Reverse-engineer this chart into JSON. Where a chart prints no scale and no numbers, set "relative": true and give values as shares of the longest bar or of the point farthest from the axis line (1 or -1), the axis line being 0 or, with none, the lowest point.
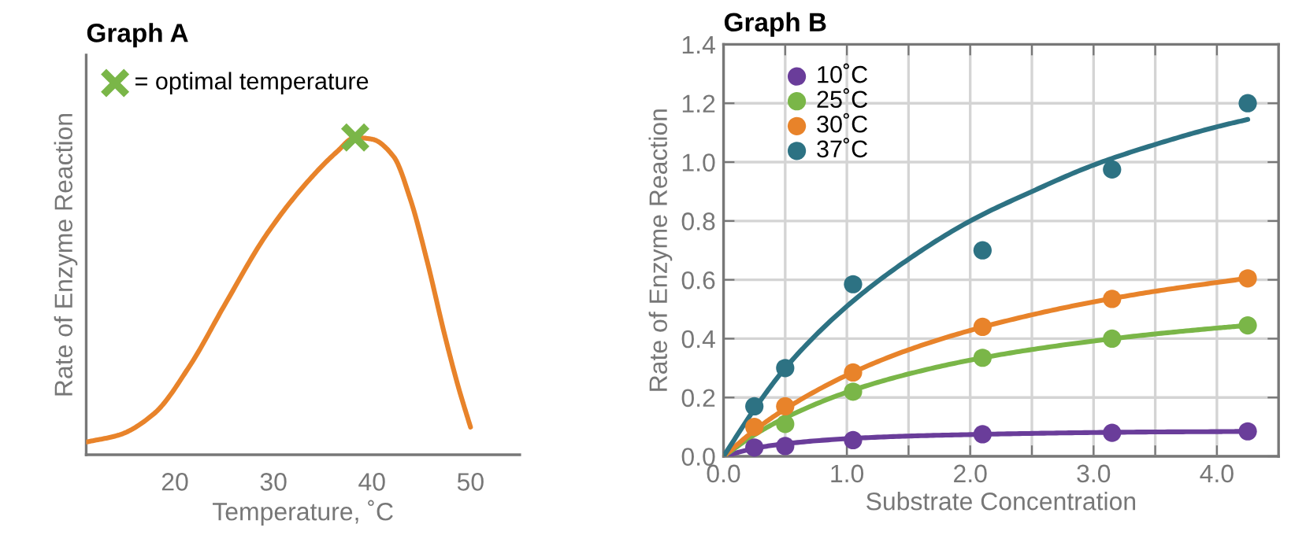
{
  "chart_data": [
    {
      "type": "line",
      "title": "Graph A",
      "xlabel": "Temperature, ˚C",
      "ylabel": "Rate of Enzyme Reaction",
      "relative": true,
      "xlim": [
        11,
        55
      ],
      "xticks": [
        20,
        30,
        40,
        50
      ],
      "grid": false,
      "legend": "top left",
      "series": [
        {
          "color": "#e8832a",
          "marker": "none",
          "x": [
            11.0,
            14.4,
            17.9,
            21.5,
            25.1,
            29.2,
            33.3,
            36.4,
            38.3,
            40.0,
            42.2,
            43.9,
            45.6,
            47.4,
            48.8,
            50.0
          ],
          "values": [
            0.04,
            0.063,
            0.13,
            0.28,
            0.475,
            0.69,
            0.855,
            0.954,
            1.0,
            0.995,
            0.94,
            0.805,
            0.61,
            0.375,
            0.21,
            0.087
          ]
        },
        {
          "type": "scatter",
          "name": "= optimal temperature",
          "color": "#7ab648",
          "marker": "cross",
          "x": [
            38.3
          ],
          "values": [
            1.0
          ]
        }
      ]
    },
    {
      "type": "scatter",
      "title": "Graph B",
      "xlabel": "Substrate Concentration",
      "ylabel": "Rate of Enzyme Reaction",
      "xlim": [
        0,
        4.5
      ],
      "ylim": [
        0,
        1.4
      ],
      "xticks": [
        {
          "value": 0,
          "label": "0.0"
        },
        {
          "value": 0.5,
          "label": null
        },
        {
          "value": 1,
          "label": "1.0"
        },
        {
          "value": 1.5,
          "label": null
        },
        {
          "value": 2,
          "label": "2.0"
        },
        {
          "value": 2.5,
          "label": null
        },
        {
          "value": 3,
          "label": "3.0"
        },
        {
          "value": 3.5,
          "label": null
        },
        {
          "value": 4,
          "label": "4.0"
        }
      ],
      "yticks": [
        {
          "value": 0,
          "label": "0.0"
        },
        {
          "value": 0.2,
          "label": "0.2"
        },
        {
          "value": 0.4,
          "label": "0.4"
        },
        {
          "value": 0.6,
          "label": "0.6"
        },
        {
          "value": 0.8,
          "label": "0.8"
        },
        {
          "value": 1.0,
          "label": "1.0"
        },
        {
          "value": 1.2,
          "label": "1.2"
        },
        {
          "value": 1.4,
          "label": "1.4"
        }
      ],
      "grid": true,
      "legend": "top left",
      "series": [
        {
          "type": "line",
          "color": "#6a3d9a",
          "marker": "none",
          "x": [
            0,
            0.25,
            0.5,
            1,
            1.5,
            2,
            2.5,
            3,
            3.5,
            4,
            4.25
          ],
          "values": [
            0,
            0.027,
            0.043,
            0.06,
            0.069,
            0.074,
            0.078,
            0.081,
            0.083,
            0.084,
            0.085
          ]
        },
        {
          "type": "line",
          "color": "#7ab648",
          "marker": "none",
          "x": [
            0,
            0.25,
            0.5,
            1,
            1.5,
            2,
            2.5,
            3,
            3.5,
            4,
            4.25
          ],
          "values": [
            0,
            0.073,
            0.131,
            0.218,
            0.28,
            0.327,
            0.363,
            0.392,
            0.416,
            0.436,
            0.445
          ]
        },
        {
          "type": "line",
          "color": "#e8832a",
          "marker": "none",
          "x": [
            0,
            0.25,
            0.5,
            1,
            1.5,
            2,
            2.5,
            3,
            3.5,
            4,
            4.25
          ],
          "values": [
            0,
            0.088,
            0.161,
            0.276,
            0.362,
            0.428,
            0.481,
            0.525,
            0.561,
            0.591,
            0.605
          ]
        },
        {
          "type": "line",
          "color": "#2d7283",
          "marker": "none",
          "x": [
            0,
            0.25,
            0.5,
            1,
            1.5,
            2,
            2.5,
            3,
            3.5,
            4,
            4.25
          ],
          "values": [
            0,
            0.16,
            0.3,
            0.51,
            0.67,
            0.8,
            0.9,
            0.99,
            1.06,
            1.12,
            1.145
          ]
        },
        {
          "name": "10˚C",
          "color": "#6a3d9a",
          "marker": "circle",
          "x": [
            0.25,
            0.5,
            1.05,
            2.1,
            3.15,
            4.25
          ],
          "values": [
            0.03,
            0.035,
            0.055,
            0.075,
            0.08,
            0.085
          ]
        },
        {
          "name": "25˚C",
          "color": "#7ab648",
          "marker": "circle",
          "x": [
            0.5,
            1.05,
            2.1,
            3.15,
            4.25
          ],
          "values": [
            0.11,
            0.22,
            0.335,
            0.4,
            0.445
          ]
        },
        {
          "name": "30˚C",
          "color": "#e8832a",
          "marker": "circle",
          "x": [
            0.25,
            0.5,
            1.05,
            2.1,
            3.15,
            4.25
          ],
          "values": [
            0.1,
            0.17,
            0.285,
            0.44,
            0.535,
            0.605
          ]
        },
        {
          "name": "37˚C",
          "color": "#2d7283",
          "marker": "circle",
          "x": [
            0.25,
            0.5,
            1.05,
            2.1,
            3.15,
            4.25
          ],
          "values": [
            0.17,
            0.3,
            0.585,
            0.7,
            0.975,
            1.2
          ]
        }
      ]
    }
  ]
}
